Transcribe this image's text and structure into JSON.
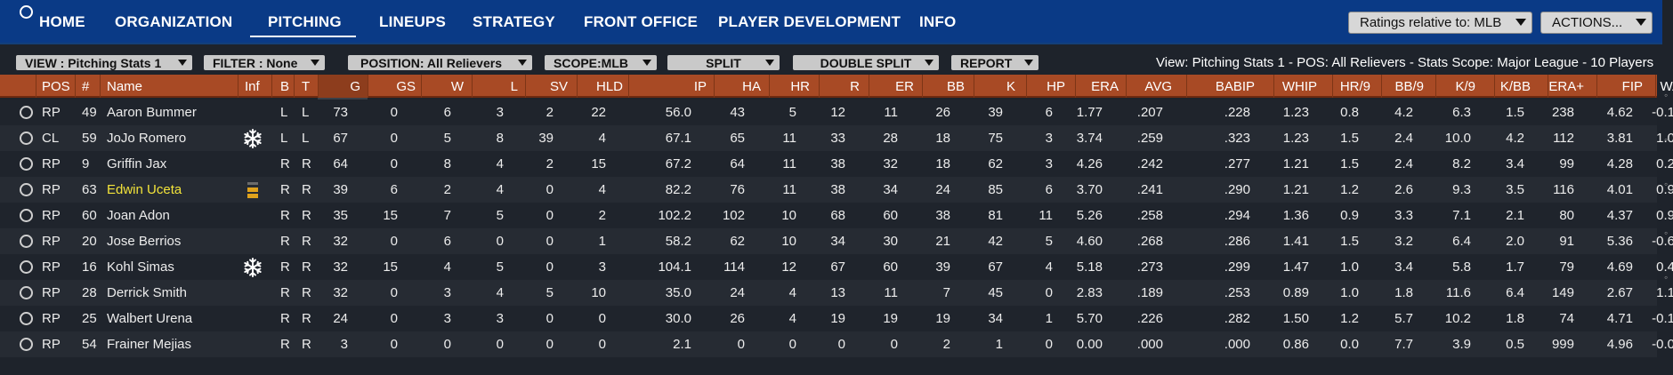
{
  "nav": {
    "items": [
      "HOME",
      "ORGANIZATION",
      "PITCHING",
      "LINEUPS",
      "STRATEGY",
      "FRONT OFFICE",
      "PLAYER DEVELOPMENT",
      "INFO"
    ],
    "active": "PITCHING",
    "ratings_dropdown": "Ratings relative to: MLB",
    "actions_dropdown": "ACTIONS..."
  },
  "filters": {
    "view": "VIEW : Pitching Stats 1",
    "filter": "FILTER : None",
    "position": "POSITION: All Relievers",
    "scope": "SCOPE:MLB",
    "split": "SPLIT",
    "double_split": "DOUBLE SPLIT",
    "report": "REPORT"
  },
  "summary": "View: Pitching Stats 1 - POS: All Relievers - Stats Scope: Major League - 10 Players",
  "table": {
    "headers": [
      "POS",
      "#",
      "Name",
      "Inf",
      "B",
      "T",
      "G",
      "GS",
      "W",
      "L",
      "SV",
      "HLD",
      "IP",
      "HA",
      "HR",
      "R",
      "ER",
      "BB",
      "K",
      "HP",
      "ERA",
      "AVG",
      "BABIP",
      "WHIP",
      "HR/9",
      "BB/9",
      "K/9",
      "K/BB",
      "ERA+",
      "FIP",
      "WAR"
    ],
    "rows": [
      {
        "pos": "RP",
        "num": "49",
        "name": "Aaron Bummer",
        "inf": "",
        "b": "L",
        "t": "L",
        "g": "73",
        "gs": "0",
        "w": "6",
        "l": "3",
        "sv": "2",
        "hld": "22",
        "ip": "56.0",
        "ha": "43",
        "hr": "5",
        "r": "12",
        "er": "11",
        "bb": "26",
        "k": "39",
        "hp": "6",
        "era": "1.77",
        "avg": ".207",
        "babip": ".228",
        "whip": "1.23",
        "hr9": "0.8",
        "bb9": "4.2",
        "k9": "6.3",
        "kbb": "1.5",
        "eraplus": "238",
        "fip": "4.62",
        "war": "-0.1"
      },
      {
        "pos": "CL",
        "num": "59",
        "name": "JoJo Romero",
        "inf": "snowflake-icon",
        "b": "L",
        "t": "L",
        "g": "67",
        "gs": "0",
        "w": "5",
        "l": "8",
        "sv": "39",
        "hld": "4",
        "ip": "67.1",
        "ha": "65",
        "hr": "11",
        "r": "33",
        "er": "28",
        "bb": "18",
        "k": "75",
        "hp": "3",
        "era": "3.74",
        "avg": ".259",
        "babip": ".323",
        "whip": "1.23",
        "hr9": "1.5",
        "bb9": "2.4",
        "k9": "10.0",
        "kbb": "4.2",
        "eraplus": "112",
        "fip": "3.81",
        "war": "1.0"
      },
      {
        "pos": "RP",
        "num": "9",
        "name": "Griffin Jax",
        "inf": "",
        "b": "R",
        "t": "R",
        "g": "64",
        "gs": "0",
        "w": "8",
        "l": "4",
        "sv": "2",
        "hld": "15",
        "ip": "67.2",
        "ha": "64",
        "hr": "11",
        "r": "38",
        "er": "32",
        "bb": "18",
        "k": "62",
        "hp": "3",
        "era": "4.26",
        "avg": ".242",
        "babip": ".277",
        "whip": "1.21",
        "hr9": "1.5",
        "bb9": "2.4",
        "k9": "8.2",
        "kbb": "3.4",
        "eraplus": "99",
        "fip": "4.28",
        "war": "0.2"
      },
      {
        "pos": "RP",
        "num": "63",
        "name": "Edwin Uceta",
        "inf": "injury-icon",
        "b": "R",
        "t": "R",
        "g": "39",
        "gs": "6",
        "w": "2",
        "l": "4",
        "sv": "0",
        "hld": "4",
        "ip": "82.2",
        "ha": "76",
        "hr": "11",
        "r": "38",
        "er": "34",
        "bb": "24",
        "k": "85",
        "hp": "6",
        "era": "3.70",
        "avg": ".241",
        "babip": ".290",
        "whip": "1.21",
        "hr9": "1.2",
        "bb9": "2.6",
        "k9": "9.3",
        "kbb": "3.5",
        "eraplus": "116",
        "fip": "4.01",
        "war": "0.9",
        "highlight": "#f2e33a"
      },
      {
        "pos": "RP",
        "num": "60",
        "name": "Joan Adon",
        "inf": "",
        "b": "R",
        "t": "R",
        "g": "35",
        "gs": "15",
        "w": "7",
        "l": "5",
        "sv": "0",
        "hld": "2",
        "ip": "102.2",
        "ha": "102",
        "hr": "10",
        "r": "68",
        "er": "60",
        "bb": "38",
        "k": "81",
        "hp": "11",
        "era": "5.26",
        "avg": ".258",
        "babip": ".294",
        "whip": "1.36",
        "hr9": "0.9",
        "bb9": "3.3",
        "k9": "7.1",
        "kbb": "2.1",
        "eraplus": "80",
        "fip": "4.37",
        "war": "0.9"
      },
      {
        "pos": "RP",
        "num": "20",
        "name": "Jose Berrios",
        "inf": "",
        "b": "R",
        "t": "R",
        "g": "32",
        "gs": "0",
        "w": "6",
        "l": "0",
        "sv": "0",
        "hld": "1",
        "ip": "58.2",
        "ha": "62",
        "hr": "10",
        "r": "34",
        "er": "30",
        "bb": "21",
        "k": "42",
        "hp": "5",
        "era": "4.60",
        "avg": ".268",
        "babip": ".286",
        "whip": "1.41",
        "hr9": "1.5",
        "bb9": "3.2",
        "k9": "6.4",
        "kbb": "2.0",
        "eraplus": "91",
        "fip": "5.36",
        "war": "-0.6"
      },
      {
        "pos": "RP",
        "num": "16",
        "name": "Kohl Simas",
        "inf": "snowflake-icon",
        "b": "R",
        "t": "R",
        "g": "32",
        "gs": "15",
        "w": "4",
        "l": "5",
        "sv": "0",
        "hld": "3",
        "ip": "104.1",
        "ha": "114",
        "hr": "12",
        "r": "67",
        "er": "60",
        "bb": "39",
        "k": "67",
        "hp": "4",
        "era": "5.18",
        "avg": ".273",
        "babip": ".299",
        "whip": "1.47",
        "hr9": "1.0",
        "bb9": "3.4",
        "k9": "5.8",
        "kbb": "1.7",
        "eraplus": "79",
        "fip": "4.69",
        "war": "0.4"
      },
      {
        "pos": "RP",
        "num": "28",
        "name": "Derrick Smith",
        "inf": "",
        "b": "R",
        "t": "R",
        "g": "32",
        "gs": "0",
        "w": "3",
        "l": "4",
        "sv": "5",
        "hld": "10",
        "ip": "35.0",
        "ha": "24",
        "hr": "4",
        "r": "13",
        "er": "11",
        "bb": "7",
        "k": "45",
        "hp": "0",
        "era": "2.83",
        "avg": ".189",
        "babip": ".253",
        "whip": "0.89",
        "hr9": "1.0",
        "bb9": "1.8",
        "k9": "11.6",
        "kbb": "6.4",
        "eraplus": "149",
        "fip": "2.67",
        "war": "1.1"
      },
      {
        "pos": "RP",
        "num": "25",
        "name": "Walbert Urena",
        "inf": "",
        "b": "R",
        "t": "R",
        "g": "24",
        "gs": "0",
        "w": "3",
        "l": "3",
        "sv": "0",
        "hld": "0",
        "ip": "30.0",
        "ha": "26",
        "hr": "4",
        "r": "19",
        "er": "19",
        "bb": "19",
        "k": "34",
        "hp": "1",
        "era": "5.70",
        "avg": ".226",
        "babip": ".282",
        "whip": "1.50",
        "hr9": "1.2",
        "bb9": "5.7",
        "k9": "10.2",
        "kbb": "1.8",
        "eraplus": "74",
        "fip": "4.71",
        "war": "-0.1"
      },
      {
        "pos": "RP",
        "num": "54",
        "name": "Frainer Mejias",
        "inf": "",
        "b": "R",
        "t": "R",
        "g": "3",
        "gs": "0",
        "w": "0",
        "l": "0",
        "sv": "0",
        "hld": "0",
        "ip": "2.1",
        "ha": "0",
        "hr": "0",
        "r": "0",
        "er": "0",
        "bb": "2",
        "k": "1",
        "hp": "0",
        "era": "0.00",
        "avg": ".000",
        "babip": ".000",
        "whip": "0.86",
        "hr9": "0.0",
        "bb9": "7.7",
        "k9": "3.9",
        "kbb": "0.5",
        "eraplus": "999",
        "fip": "4.96",
        "war": "-0.0"
      }
    ]
  },
  "colors": {
    "nav_bg": "#0a3a86",
    "header_bg": "#a84a25",
    "body_bg": "#1e232b",
    "row_alt": "#262b33",
    "highlight_name": "#f2e33a",
    "injury_icon": "#e0a21c"
  }
}
